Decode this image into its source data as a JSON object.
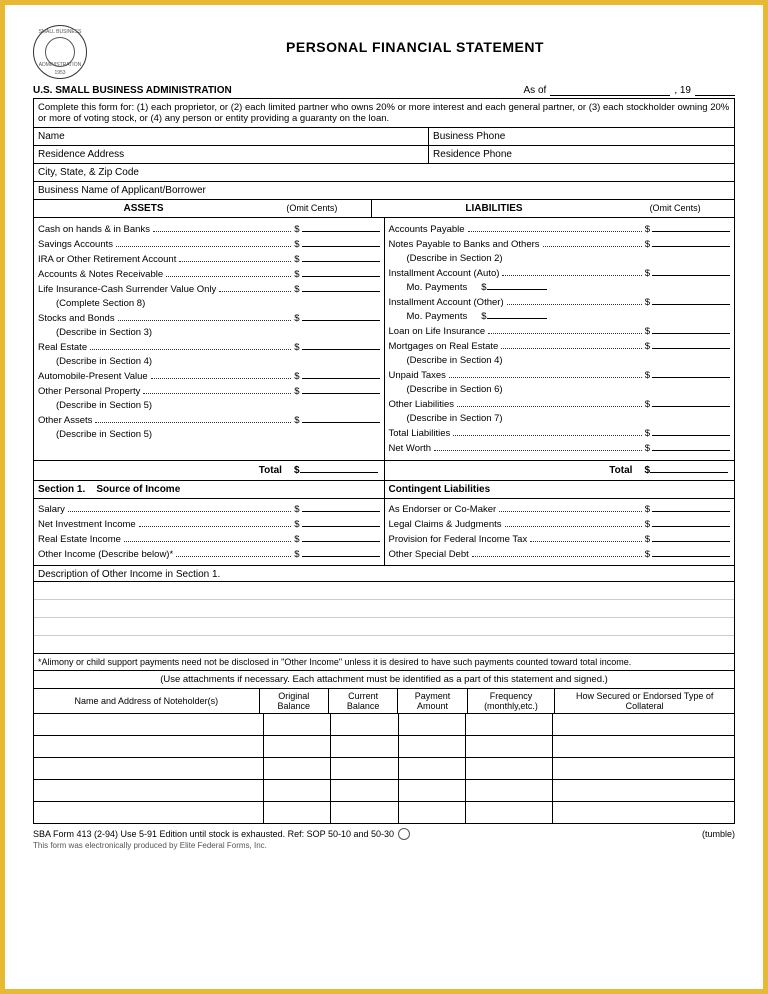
{
  "header": {
    "seal_top": "SMALL BUSINESS",
    "seal_bottom": "ADMINISTRATION",
    "seal_year": "1953",
    "title": "PERSONAL FINANCIAL STATEMENT",
    "org": "U.S. SMALL BUSINESS ADMINISTRATION",
    "asof_label": "As of",
    "asof_year_prefix": ", 19"
  },
  "instructions": "Complete this form for: (1) each proprietor, or (2) each limited partner who owns 20% or more interest and each general partner, or (3) each stockholder owning 20% or more of voting stock, or (4) any person or entity providing a guaranty on the loan.",
  "fields": {
    "name": "Name",
    "bphone": "Business Phone",
    "raddr": "Residence Address",
    "rphone": "Residence Phone",
    "city": "City, State, & Zip Code",
    "bname": "Business Name of Applicant/Borrower"
  },
  "columns": {
    "assets": "ASSETS",
    "omit": "(Omit Cents)",
    "liab": "LIABILITIES"
  },
  "assets": [
    {
      "t": "Cash on hands & in Banks",
      "amt": true
    },
    {
      "t": "Savings Accounts",
      "amt": true
    },
    {
      "t": "IRA or Other Retirement Account",
      "amt": true
    },
    {
      "t": "Accounts & Notes Receivable",
      "amt": true
    },
    {
      "t": "Life Insurance-Cash Surrender Value Only",
      "amt": true
    },
    {
      "t": "(Complete Section 8)",
      "sub": true
    },
    {
      "t": "Stocks and Bonds",
      "amt": true
    },
    {
      "t": "(Describe in Section 3)",
      "sub": true
    },
    {
      "t": "Real Estate",
      "amt": true
    },
    {
      "t": "(Describe in Section 4)",
      "sub": true
    },
    {
      "t": "Automobile-Present Value",
      "amt": true
    },
    {
      "t": "Other Personal Property",
      "amt": true
    },
    {
      "t": "(Describe in Section 5)",
      "sub": true
    },
    {
      "t": "Other Assets",
      "amt": true
    },
    {
      "t": "(Describe in Section 5)",
      "sub": true
    }
  ],
  "liabilities": [
    {
      "t": "Accounts Payable",
      "amt": true
    },
    {
      "t": "Notes Payable to Banks and Others",
      "amt": true
    },
    {
      "t": "(Describe in Section 2)",
      "sub": true
    },
    {
      "t": "Installment Account (Auto)",
      "amt": true
    },
    {
      "t": "Mo. Payments",
      "sub": true,
      "mini": true
    },
    {
      "t": "Installment Account (Other)",
      "amt": true
    },
    {
      "t": "Mo. Payments",
      "sub": true,
      "mini": true
    },
    {
      "t": "Loan on Life Insurance",
      "amt": true
    },
    {
      "t": "Mortgages on Real Estate",
      "amt": true
    },
    {
      "t": "(Describe in Section 4)",
      "sub": true
    },
    {
      "t": "Unpaid Taxes",
      "amt": true
    },
    {
      "t": "(Describe in Section 6)",
      "sub": true
    },
    {
      "t": "Other Liabilities",
      "amt": true
    },
    {
      "t": "(Describe in Section 7)",
      "sub": true
    },
    {
      "t": "Total Liabilities",
      "amt": true
    },
    {
      "t": "Net Worth",
      "amt": true
    }
  ],
  "totals": {
    "left": "Total",
    "right": "Total",
    "sym": "$"
  },
  "section1": {
    "left_title": "Section 1.    Source of Income",
    "right_title": "Contingent Liabilities",
    "income": [
      {
        "t": "Salary",
        "amt": true
      },
      {
        "t": "Net Investment Income",
        "amt": true
      },
      {
        "t": "Real Estate Income",
        "amt": true
      },
      {
        "t": "Other Income (Describe below)*",
        "amt": true
      }
    ],
    "contingent": [
      {
        "t": "As Endorser or Co-Maker",
        "amt": true
      },
      {
        "t": "Legal Claims & Judgments",
        "amt": true
      },
      {
        "t": "Provision for Federal Income Tax",
        "amt": true
      },
      {
        "t": "Other Special Debt",
        "amt": true
      }
    ],
    "desc": "Description of Other Income in Section 1."
  },
  "alimony_note": "*Alimony or child support payments need not be disclosed in \"Other Income\" unless it is desired to have such payments counted toward total income.",
  "attach_note": "(Use attachments if necessary. Each attachment must be identified as a part of this statement and signed.)",
  "noteholder_cols": {
    "c1": "Name and Address of Noteholder(s)",
    "c2": "Original Balance",
    "c3": "Current Balance",
    "c4": "Payment Amount",
    "c5": "Frequency (monthly,etc.)",
    "c6": "How Secured or Endorsed Type of Collateral"
  },
  "noteholder_rows": 5,
  "footer": {
    "left": "SBA Form 413 (2-94) Use 5-91 Edition until stock is exhausted. Ref: SOP 50-10 and 50-30",
    "right": "(tumble)",
    "produced": "This form was electronically produced by Elite Federal Forms, Inc."
  }
}
